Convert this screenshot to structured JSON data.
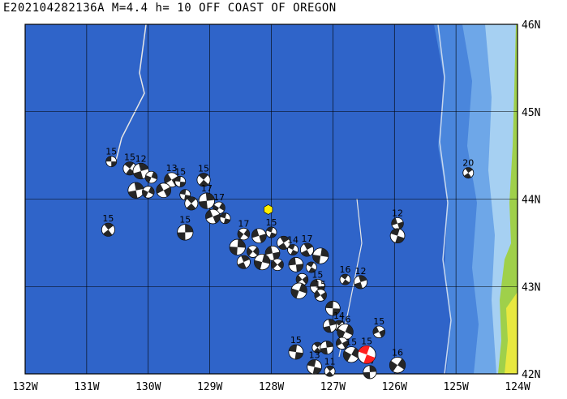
{
  "title": "E202104282136A M=4.4 h= 10 OFF COAST OF OREGON",
  "lon_range": [
    -132,
    -124
  ],
  "lat_range": [
    42,
    46
  ],
  "lon_labels": [
    "132W",
    "131W",
    "130W",
    "129W",
    "128W",
    "127W",
    "126W",
    "125W",
    "124W"
  ],
  "lat_labels": [
    "42N",
    "43N",
    "44N",
    "45N",
    "46N"
  ],
  "colors": {
    "deep_ocean": "#2f64c9",
    "slope_ocean": "#4a86dc",
    "shelf_ocean": "#8ec2ee",
    "land": "#9fd04a",
    "land_high": "#e8e840",
    "graticule": "#000000",
    "focal_dark": "#262626",
    "focal_light": "#ffffff",
    "highlight": "#ff2020",
    "epicenter_star": "#ffef00"
  },
  "mechanisms": [
    {
      "lon": -130.6,
      "lat": 44.43,
      "label": "15"
    },
    {
      "lon": -130.3,
      "lat": 44.35,
      "label": "15"
    },
    {
      "lon": -130.12,
      "lat": 44.32,
      "label": "12"
    },
    {
      "lon": -129.95,
      "lat": 44.25,
      "label": ""
    },
    {
      "lon": -129.62,
      "lat": 44.22,
      "label": "13"
    },
    {
      "lon": -129.48,
      "lat": 44.2,
      "label": "15"
    },
    {
      "lon": -129.1,
      "lat": 44.22,
      "label": "15"
    },
    {
      "lon": -130.2,
      "lat": 44.1,
      "label": ""
    },
    {
      "lon": -130.0,
      "lat": 44.08,
      "label": ""
    },
    {
      "lon": -129.75,
      "lat": 44.1,
      "label": ""
    },
    {
      "lon": -129.4,
      "lat": 44.05,
      "label": ""
    },
    {
      "lon": -129.3,
      "lat": 43.95,
      "label": ""
    },
    {
      "lon": -129.05,
      "lat": 43.98,
      "label": "17"
    },
    {
      "lon": -128.85,
      "lat": 43.9,
      "label": "17"
    },
    {
      "lon": -128.95,
      "lat": 43.8,
      "label": ""
    },
    {
      "lon": -128.75,
      "lat": 43.78,
      "label": ""
    },
    {
      "lon": -130.65,
      "lat": 43.65,
      "label": "15"
    },
    {
      "lon": -129.4,
      "lat": 43.62,
      "label": "15"
    },
    {
      "lon": -128.45,
      "lat": 43.6,
      "label": "17"
    },
    {
      "lon": -128.2,
      "lat": 43.58,
      "label": ""
    },
    {
      "lon": -128.0,
      "lat": 43.62,
      "label": "15"
    },
    {
      "lon": -127.8,
      "lat": 43.5,
      "label": ""
    },
    {
      "lon": -128.55,
      "lat": 43.45,
      "label": ""
    },
    {
      "lon": -128.3,
      "lat": 43.4,
      "label": ""
    },
    {
      "lon": -127.98,
      "lat": 43.38,
      "label": ""
    },
    {
      "lon": -127.65,
      "lat": 43.42,
      "label": "14"
    },
    {
      "lon": -127.42,
      "lat": 43.42,
      "label": "17"
    },
    {
      "lon": -127.2,
      "lat": 43.35,
      "label": ""
    },
    {
      "lon": -127.9,
      "lat": 43.25,
      "label": ""
    },
    {
      "lon": -127.6,
      "lat": 43.25,
      "label": ""
    },
    {
      "lon": -127.35,
      "lat": 43.22,
      "label": ""
    },
    {
      "lon": -128.45,
      "lat": 43.28,
      "label": ""
    },
    {
      "lon": -128.15,
      "lat": 43.28,
      "label": ""
    },
    {
      "lon": -127.5,
      "lat": 43.08,
      "label": ""
    },
    {
      "lon": -127.25,
      "lat": 43.0,
      "label": "15"
    },
    {
      "lon": -126.8,
      "lat": 43.08,
      "label": "16"
    },
    {
      "lon": -126.55,
      "lat": 43.05,
      "label": "12"
    },
    {
      "lon": -127.55,
      "lat": 42.95,
      "label": ""
    },
    {
      "lon": -127.2,
      "lat": 42.9,
      "label": "15"
    },
    {
      "lon": -127.0,
      "lat": 42.75,
      "label": ""
    },
    {
      "lon": -126.9,
      "lat": 42.55,
      "label": "14"
    },
    {
      "lon": -127.05,
      "lat": 42.55,
      "label": ""
    },
    {
      "lon": -126.8,
      "lat": 42.48,
      "label": "16"
    },
    {
      "lon": -126.85,
      "lat": 42.35,
      "label": ""
    },
    {
      "lon": -127.6,
      "lat": 42.25,
      "label": "15"
    },
    {
      "lon": -127.25,
      "lat": 42.3,
      "label": ""
    },
    {
      "lon": -127.1,
      "lat": 42.3,
      "label": ""
    },
    {
      "lon": -126.7,
      "lat": 42.22,
      "label": "15"
    },
    {
      "lon": -126.25,
      "lat": 42.48,
      "label": "15"
    },
    {
      "lon": -127.3,
      "lat": 42.08,
      "label": "13"
    },
    {
      "lon": -127.05,
      "lat": 42.03,
      "label": "11"
    },
    {
      "lon": -126.4,
      "lat": 42.02,
      "label": "17"
    },
    {
      "lon": -125.95,
      "lat": 42.1,
      "label": "16"
    },
    {
      "lon": -125.95,
      "lat": 43.72,
      "label": "12"
    },
    {
      "lon": -125.95,
      "lat": 43.58,
      "label": ""
    },
    {
      "lon": -124.8,
      "lat": 44.3,
      "label": "20"
    }
  ],
  "highlight": {
    "lon": -126.45,
    "lat": 42.22,
    "label": "15"
  },
  "epicenter": {
    "lon": -128.05,
    "lat": 43.88
  }
}
